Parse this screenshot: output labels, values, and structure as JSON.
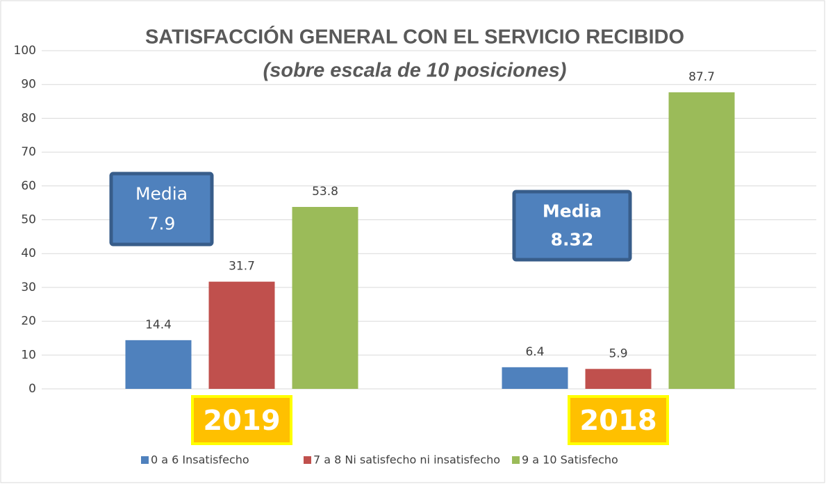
{
  "chart_data": {
    "type": "bar",
    "title": "SATISFACCIÓN GENERAL CON EL SERVICIO RECIBIDO",
    "subtitle": "(sobre escala de 10 posiciones)",
    "categories": [
      "2019",
      "2018"
    ],
    "series": [
      {
        "name": "0 a 6 Insatisfecho",
        "color": "#4f81bd",
        "values": [
          14.4,
          6.4
        ]
      },
      {
        "name": "7 a 8 Ni satisfecho ni insatisfecho",
        "color": "#c0504d",
        "values": [
          31.7,
          5.9
        ]
      },
      {
        "name": "9 a 10 Satisfecho",
        "color": "#9bbb59",
        "values": [
          53.8,
          87.7
        ]
      }
    ],
    "annotations": [
      {
        "lines": [
          "Media",
          "7.9"
        ]
      },
      {
        "lines": [
          "Media",
          "8.32"
        ]
      }
    ],
    "ylim": [
      0,
      100
    ],
    "yticks": [
      0,
      10,
      20,
      30,
      40,
      50,
      60,
      70,
      80,
      90,
      100
    ],
    "grid": true,
    "legend": "bottom"
  }
}
